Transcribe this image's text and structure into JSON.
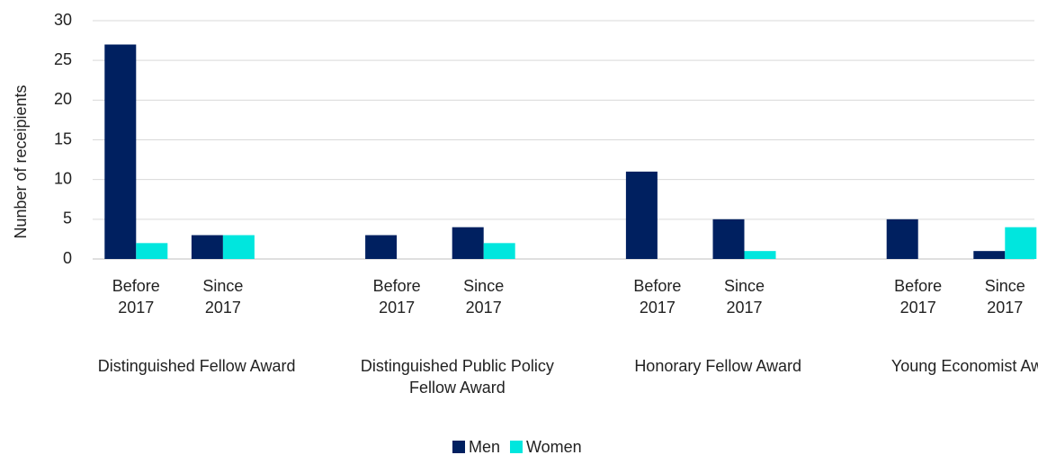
{
  "chart_data": {
    "type": "bar",
    "y_label": "Nunber of receipients",
    "categories": [
      "Before 2017",
      "Since 2017",
      null,
      "Before 2017",
      "Since 2017",
      null,
      "Before 2017",
      "Since 2017",
      null,
      "Before 2017",
      "Since 2017"
    ],
    "groups": [
      "Distinguished Fellow Award",
      "Distinguished Public Policy Fellow Award",
      "Honorary Fellow Award",
      "Young Economist Award"
    ],
    "series": [
      {
        "name": "Men",
        "color": "#002060",
        "values": [
          27,
          3,
          null,
          3,
          4,
          null,
          11,
          5,
          null,
          5,
          1
        ]
      },
      {
        "name": "Women",
        "color": "#00e6de",
        "values": [
          2,
          3,
          null,
          0,
          2,
          null,
          0,
          1,
          null,
          0,
          4
        ]
      }
    ],
    "ylim": [
      0,
      30
    ],
    "yticks": [
      0,
      5,
      10,
      15,
      20,
      25,
      30
    ],
    "grid": true,
    "legend": "bottom"
  }
}
